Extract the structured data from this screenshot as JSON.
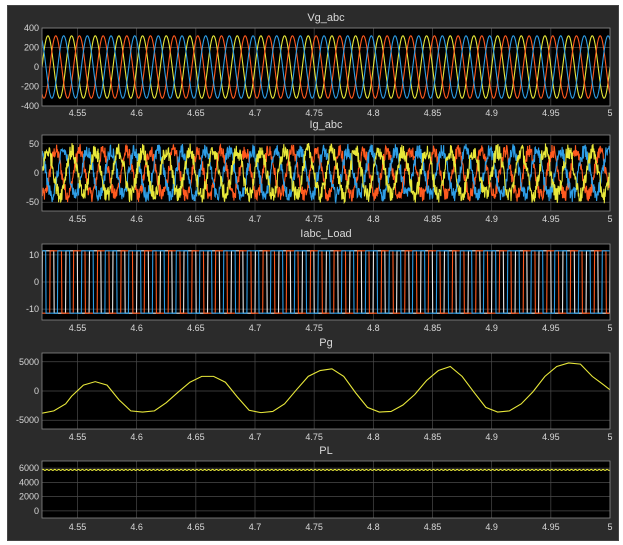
{
  "figure": {
    "background": "#2b2b2b",
    "axes_background": "#000000",
    "grid_color": "#4a4a4a",
    "text_color": "#d8d8d8"
  },
  "chart_data": [
    {
      "type": "line",
      "title": "Vg_abc",
      "xlim": [
        4.52,
        5.0
      ],
      "xticks": [
        4.55,
        4.6,
        4.65,
        4.7,
        4.75,
        4.8,
        4.85,
        4.9,
        4.95,
        5
      ],
      "xtick_labels": [
        "4.55",
        "4.6",
        "4.65",
        "4.7",
        "4.75",
        "4.8",
        "4.85",
        "4.9",
        "4.95",
        "5"
      ],
      "ylim": [
        -400,
        400
      ],
      "yticks": [
        -400,
        -200,
        0,
        200,
        400
      ],
      "ytick_labels": [
        "-400",
        "-200",
        "0",
        "200",
        "400"
      ],
      "grid": true,
      "series": [
        {
          "color": "#e8e83a",
          "amplitude": 320,
          "frequency_hz": 50,
          "phase_deg": 0
        },
        {
          "color": "#ff5a1f",
          "amplitude": 320,
          "frequency_hz": 50,
          "phase_deg": -120
        },
        {
          "color": "#2e9ee6",
          "amplitude": 320,
          "frequency_hz": 50,
          "phase_deg": 120
        }
      ]
    },
    {
      "type": "line",
      "title": "Ig_abc",
      "xlim": [
        4.52,
        5.0
      ],
      "xticks": [
        4.55,
        4.6,
        4.65,
        4.7,
        4.75,
        4.8,
        4.85,
        4.9,
        4.95,
        5
      ],
      "xtick_labels": [
        "4.55",
        "4.6",
        "4.65",
        "4.7",
        "4.75",
        "4.8",
        "4.85",
        "4.9",
        "4.95",
        "5"
      ],
      "ylim": [
        -65,
        65
      ],
      "yticks": [
        -50,
        0,
        50
      ],
      "ytick_labels": [
        "-50",
        "0",
        "50"
      ],
      "grid": true,
      "series": [
        {
          "color": "#ff5a1f",
          "amplitude": 38,
          "frequency_hz": 50,
          "phase_deg": -120,
          "noise": 12
        },
        {
          "color": "#2e9ee6",
          "amplitude": 38,
          "frequency_hz": 50,
          "phase_deg": 120,
          "noise": 12
        },
        {
          "color": "#e8e83a",
          "amplitude": 38,
          "frequency_hz": 50,
          "phase_deg": 0,
          "noise": 14
        }
      ]
    },
    {
      "type": "line",
      "title": "Iabc_Load",
      "xlim": [
        4.52,
        5.0
      ],
      "xticks": [
        4.55,
        4.6,
        4.65,
        4.7,
        4.75,
        4.8,
        4.85,
        4.9,
        4.95,
        5
      ],
      "xtick_labels": [
        "4.55",
        "4.6",
        "4.65",
        "4.7",
        "4.75",
        "4.8",
        "4.85",
        "4.9",
        "4.95",
        "5"
      ],
      "ylim": [
        -14,
        14
      ],
      "yticks": [
        -10,
        0,
        10
      ],
      "ytick_labels": [
        "-10",
        "0",
        "10"
      ],
      "grid": true,
      "series": [
        {
          "color": "#e8e8e8",
          "amplitude": 11.5,
          "frequency_hz": 50,
          "phase_deg": 0,
          "waveform": "square"
        },
        {
          "color": "#ff5a1f",
          "amplitude": 11.5,
          "frequency_hz": 50,
          "phase_deg": -120,
          "waveform": "square"
        },
        {
          "color": "#2e9ee6",
          "amplitude": 11.5,
          "frequency_hz": 50,
          "phase_deg": 120,
          "waveform": "square"
        }
      ]
    },
    {
      "type": "line",
      "title": "Pg",
      "xlim": [
        4.52,
        5.0
      ],
      "xticks": [
        4.55,
        4.6,
        4.65,
        4.7,
        4.75,
        4.8,
        4.85,
        4.9,
        4.95,
        5
      ],
      "xtick_labels": [
        "4.55",
        "4.6",
        "4.65",
        "4.7",
        "4.75",
        "4.8",
        "4.85",
        "4.9",
        "4.95",
        "5"
      ],
      "ylim": [
        -6500,
        6500
      ],
      "yticks": [
        -5000,
        0,
        5000
      ],
      "ytick_labels": [
        "-5000",
        "0",
        "5000"
      ],
      "grid": true,
      "series": [
        {
          "color": "#e8e83a",
          "x": [
            4.52,
            4.53,
            4.54,
            4.545,
            4.555,
            4.565,
            4.575,
            4.585,
            4.595,
            4.605,
            4.615,
            4.625,
            4.635,
            4.645,
            4.655,
            4.665,
            4.675,
            4.685,
            4.695,
            4.705,
            4.715,
            4.725,
            4.735,
            4.745,
            4.755,
            4.765,
            4.775,
            4.785,
            4.795,
            4.805,
            4.815,
            4.825,
            4.835,
            4.845,
            4.855,
            4.865,
            4.875,
            4.885,
            4.895,
            4.905,
            4.915,
            4.925,
            4.935,
            4.945,
            4.955,
            4.965,
            4.975,
            4.985,
            4.995,
            5.0
          ],
          "y": [
            -3800,
            -3400,
            -2200,
            -900,
            1000,
            1600,
            1000,
            -1500,
            -3400,
            -3600,
            -3400,
            -2000,
            -200,
            1500,
            2500,
            2500,
            1500,
            -1000,
            -3300,
            -3700,
            -3500,
            -2200,
            200,
            2500,
            3500,
            3800,
            2500,
            -300,
            -2800,
            -3600,
            -3500,
            -2400,
            -600,
            1800,
            3500,
            4200,
            2500,
            -200,
            -2800,
            -3600,
            -3400,
            -2200,
            -100,
            2500,
            4200,
            4800,
            4600,
            2500,
            1000,
            200
          ]
        }
      ]
    },
    {
      "type": "line",
      "title": "PL",
      "xlim": [
        4.52,
        5.0
      ],
      "xticks": [
        4.55,
        4.6,
        4.65,
        4.7,
        4.75,
        4.8,
        4.85,
        4.9,
        4.95,
        5
      ],
      "xtick_labels": [
        "4.55",
        "4.6",
        "4.65",
        "4.7",
        "4.75",
        "4.8",
        "4.85",
        "4.9",
        "4.95",
        "5"
      ],
      "ylim": [
        -1000,
        7000
      ],
      "yticks": [
        0,
        2000,
        4000,
        6000
      ],
      "ytick_labels": [
        "0",
        "2000",
        "4000",
        "6000"
      ],
      "grid": true,
      "series": [
        {
          "color": "#e8e83a",
          "constant": 5750,
          "ripple": 70,
          "ripple_frequency_hz": 300
        }
      ]
    }
  ]
}
